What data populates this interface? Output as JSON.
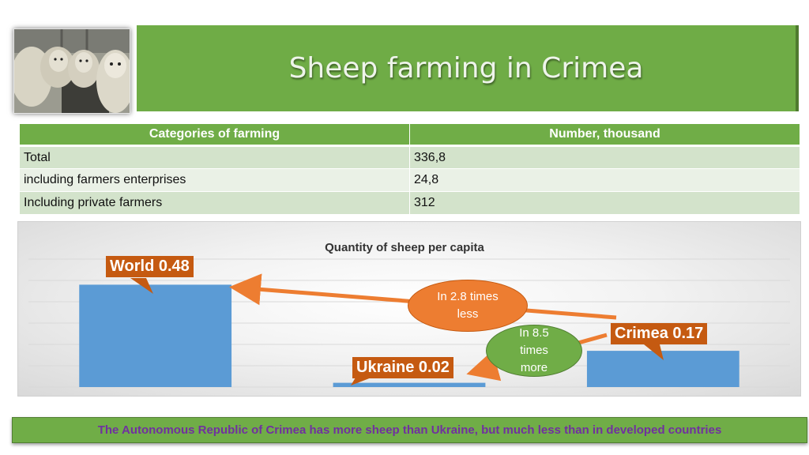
{
  "slide": {
    "title": "Sheep farming in Crimea",
    "footer": "The Autonomous Republic of Crimea has more sheep than Ukraine, but much less than in developed countries"
  },
  "table": {
    "headers": [
      "Categories of farming",
      "Number, thousand"
    ],
    "rows": [
      [
        "Total",
        "336,8"
      ],
      [
        "including farmers enterprises",
        "24,8"
      ],
      [
        "Including private farmers",
        "312"
      ]
    ]
  },
  "chart_data": {
    "type": "bar",
    "title": "Quantity of sheep per capita",
    "categories": [
      "World",
      "Ukraine",
      "Crimea"
    ],
    "values": [
      0.48,
      0.02,
      0.17
    ],
    "data_labels": [
      "World 0.48",
      "Ukraine 0.02",
      "Crimea 0.17"
    ],
    "ylim": [
      0,
      0.6
    ],
    "grid": true,
    "legend": "none",
    "annotations": [
      {
        "lines": [
          "In 2.8 times",
          "less"
        ]
      },
      {
        "lines": [
          "In 8.5",
          "times",
          "more"
        ]
      }
    ]
  },
  "colors": {
    "bar": "#5b9bd5",
    "callout": "#c55a11",
    "arrow": "#ed7d31",
    "green": "#70ad47",
    "footer_text": "#7030a0"
  },
  "icons": {
    "photo": "sheep-photo"
  }
}
